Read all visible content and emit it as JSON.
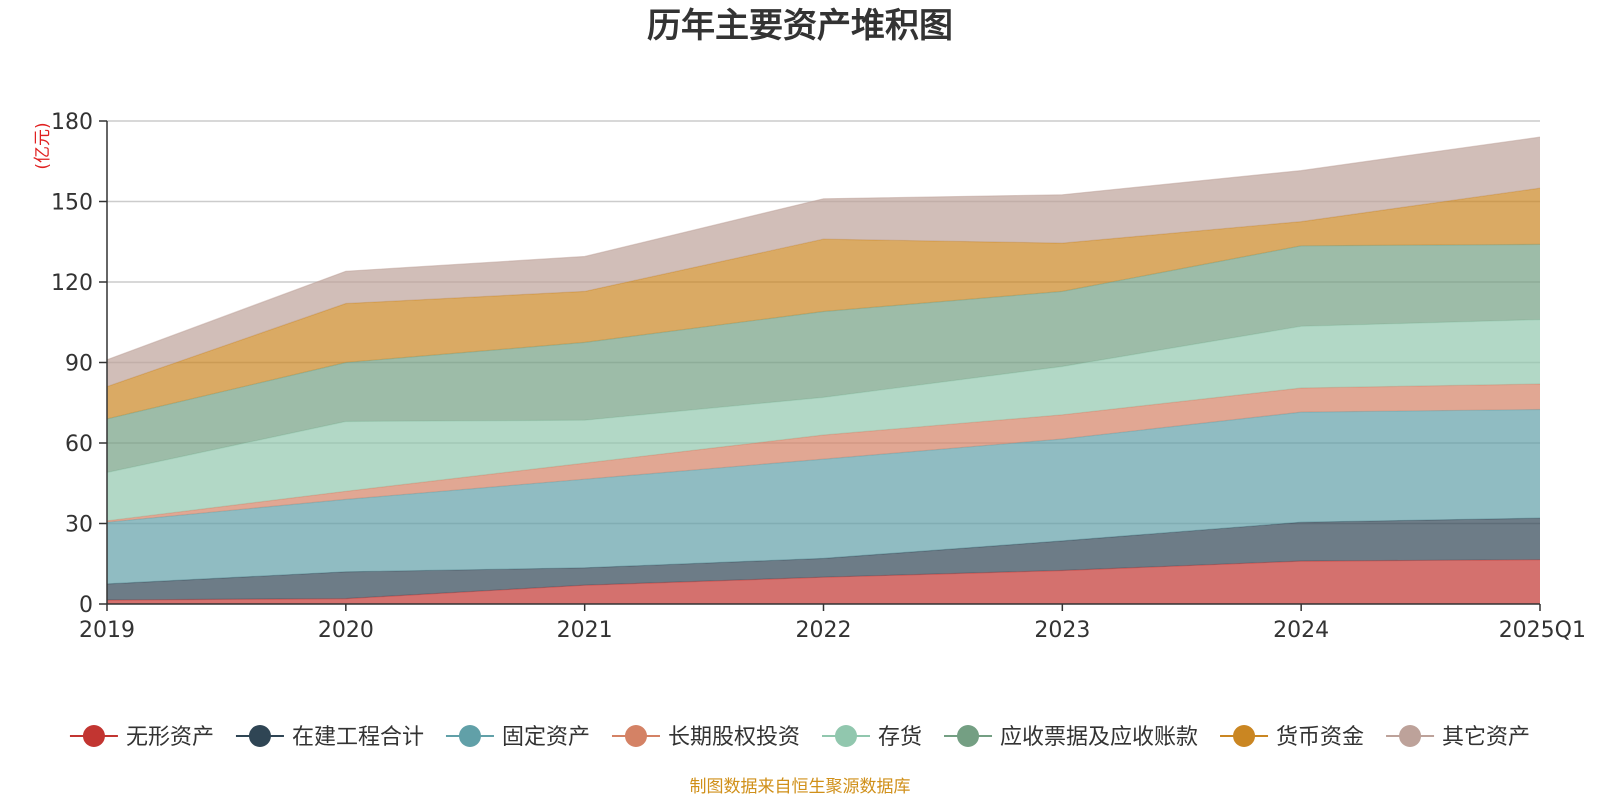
{
  "chart_data": {
    "type": "area",
    "stacked": true,
    "title": "历年主要资产堆积图",
    "unit_label": "(亿元)",
    "x": [
      "2019",
      "2020",
      "2021",
      "2022",
      "2023",
      "2024",
      "2025Q1"
    ],
    "ylim": [
      0,
      180
    ],
    "yticks": [
      "0",
      "30",
      "60",
      "90",
      "120",
      "150",
      "180"
    ],
    "grid": true,
    "legend_position": "bottom",
    "series": [
      {
        "name": "无形资产",
        "color": "#c23531",
        "values": [
          1.5,
          2,
          7,
          10,
          12.5,
          16,
          16.5
        ]
      },
      {
        "name": "在建工程合计",
        "color": "#2f4554",
        "values": [
          6,
          10,
          6.5,
          7,
          11,
          14.5,
          15.5
        ]
      },
      {
        "name": "固定资产",
        "color": "#61a0a8",
        "values": [
          23,
          27,
          33,
          37,
          38,
          41,
          40.5
        ]
      },
      {
        "name": "长期股权投资",
        "color": "#d48265",
        "values": [
          0.5,
          3,
          6,
          9,
          9,
          9,
          9.5
        ]
      },
      {
        "name": "存货",
        "color": "#91c7ae",
        "values": [
          18,
          26,
          16,
          14,
          18,
          23,
          24
        ]
      },
      {
        "name": "应收票据及应收账款",
        "color": "#749f83",
        "values": [
          20,
          22,
          29,
          32,
          28,
          30,
          28
        ]
      },
      {
        "name": "货币资金",
        "color": "#ca8622",
        "values": [
          12,
          22,
          19,
          27,
          18,
          9,
          21
        ]
      },
      {
        "name": "其它资产",
        "color": "#bda29a",
        "values": [
          10,
          12,
          13,
          15,
          18,
          19,
          19
        ]
      }
    ],
    "source_note": "制图数据来自恒生聚源数据库"
  }
}
